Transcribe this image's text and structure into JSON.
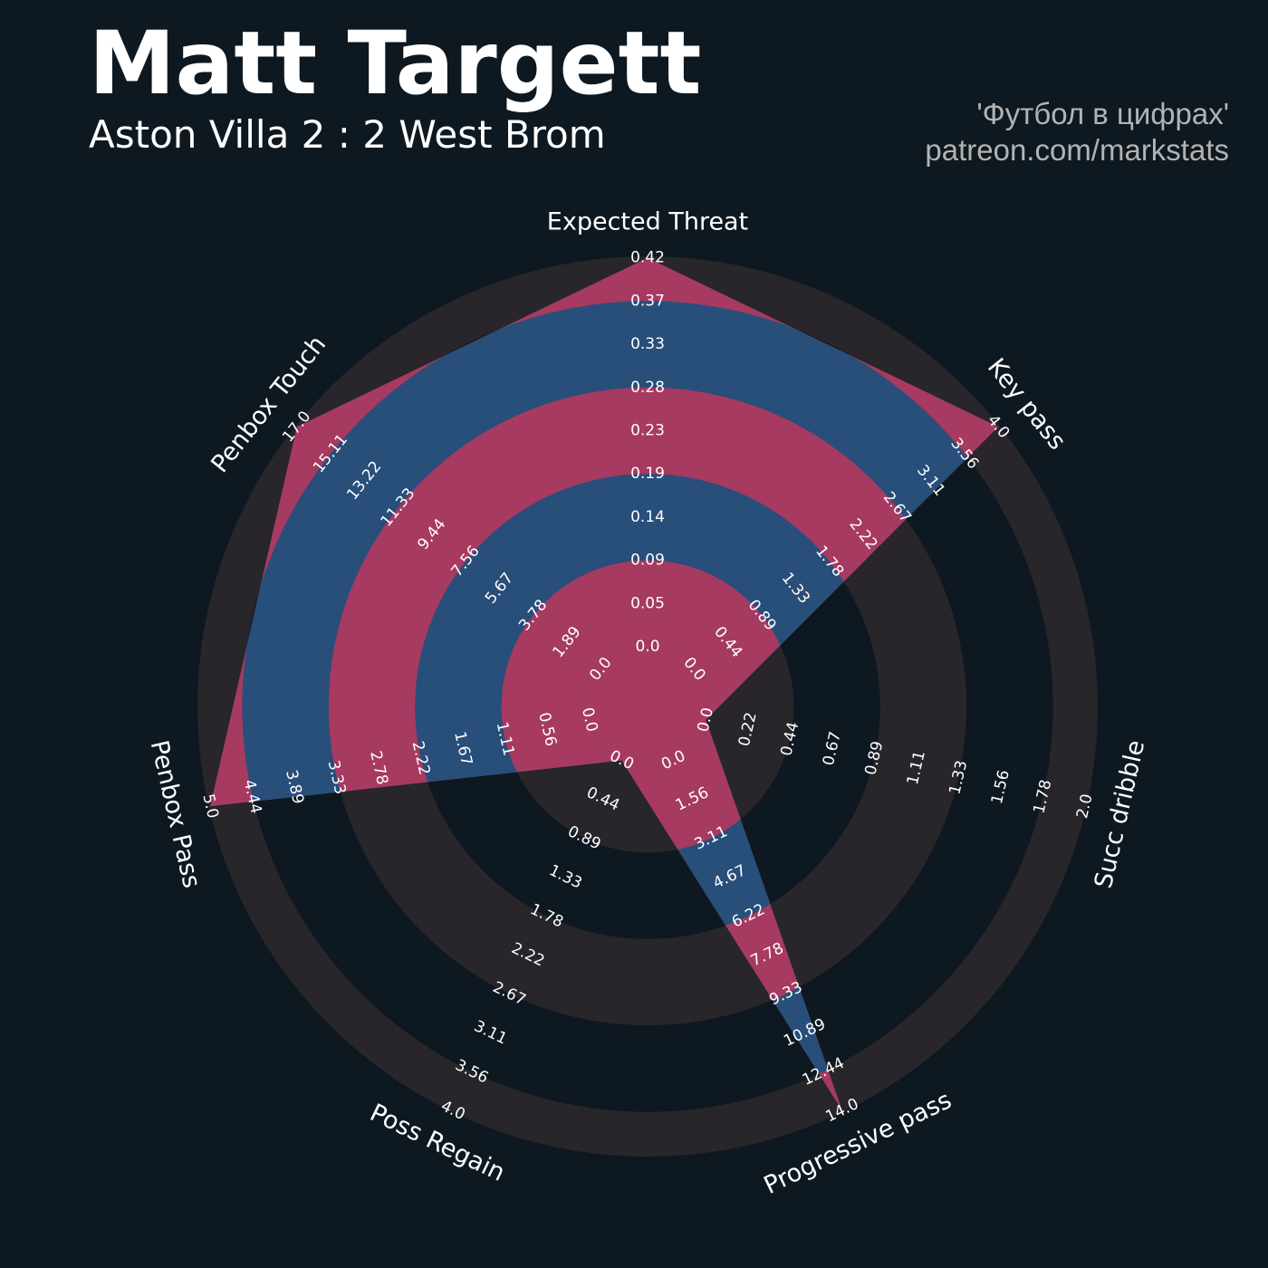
{
  "header": {
    "title": "Matt Targett",
    "subtitle": "Aston Villa 2 : 2 West Brom",
    "credit_line1": "'Футбол в цифрах'",
    "credit_line2": "patreon.com/markstats"
  },
  "colors": {
    "background": "#0e1820",
    "ring_outer": "#28252b",
    "ring_inner": "#a63a60",
    "polygon": "#284e7a",
    "text": "#ffffff"
  },
  "chart_data": {
    "type": "radar",
    "axes": [
      {
        "name": "Expected Threat",
        "max": 0.42,
        "value": 0.42,
        "ticks": [
          "0.0",
          "0.05",
          "0.09",
          "0.14",
          "0.19",
          "0.23",
          "0.28",
          "0.33",
          "0.37",
          "0.42"
        ]
      },
      {
        "name": "Key pass",
        "max": 4.0,
        "value": 4.0,
        "ticks": [
          "0.0",
          "0.44",
          "0.89",
          "1.33",
          "1.78",
          "2.22",
          "2.67",
          "3.11",
          "3.56",
          "4.0"
        ]
      },
      {
        "name": "Succ dribble",
        "max": 2.0,
        "value": 0.0,
        "ticks": [
          "0.0",
          "0.22",
          "0.44",
          "0.67",
          "0.89",
          "1.11",
          "1.33",
          "1.56",
          "1.78",
          "2.0"
        ]
      },
      {
        "name": "Progressive pass",
        "max": 14.0,
        "value": 14.0,
        "ticks": [
          "0.0",
          "1.56",
          "3.11",
          "4.67",
          "6.22",
          "7.78",
          "9.33",
          "10.89",
          "12.44",
          "14.0"
        ]
      },
      {
        "name": "Poss Regain",
        "max": 4.0,
        "value": 0.0,
        "ticks": [
          "0.0",
          "0.44",
          "0.89",
          "1.33",
          "1.78",
          "2.22",
          "2.67",
          "3.11",
          "3.56",
          "4.0"
        ]
      },
      {
        "name": "Penbox Pass",
        "max": 5.0,
        "value": 5.0,
        "ticks": [
          "0.0",
          "0.56",
          "1.11",
          "1.67",
          "2.22",
          "2.78",
          "3.33",
          "3.89",
          "4.44",
          "5.0"
        ]
      },
      {
        "name": "Penbox Touch",
        "max": 17.0,
        "value": 17.0,
        "ticks": [
          "0.0",
          "1.89",
          "3.78",
          "5.67",
          "7.56",
          "9.44",
          "11.33",
          "13.22",
          "15.11",
          "17.0"
        ]
      }
    ]
  }
}
